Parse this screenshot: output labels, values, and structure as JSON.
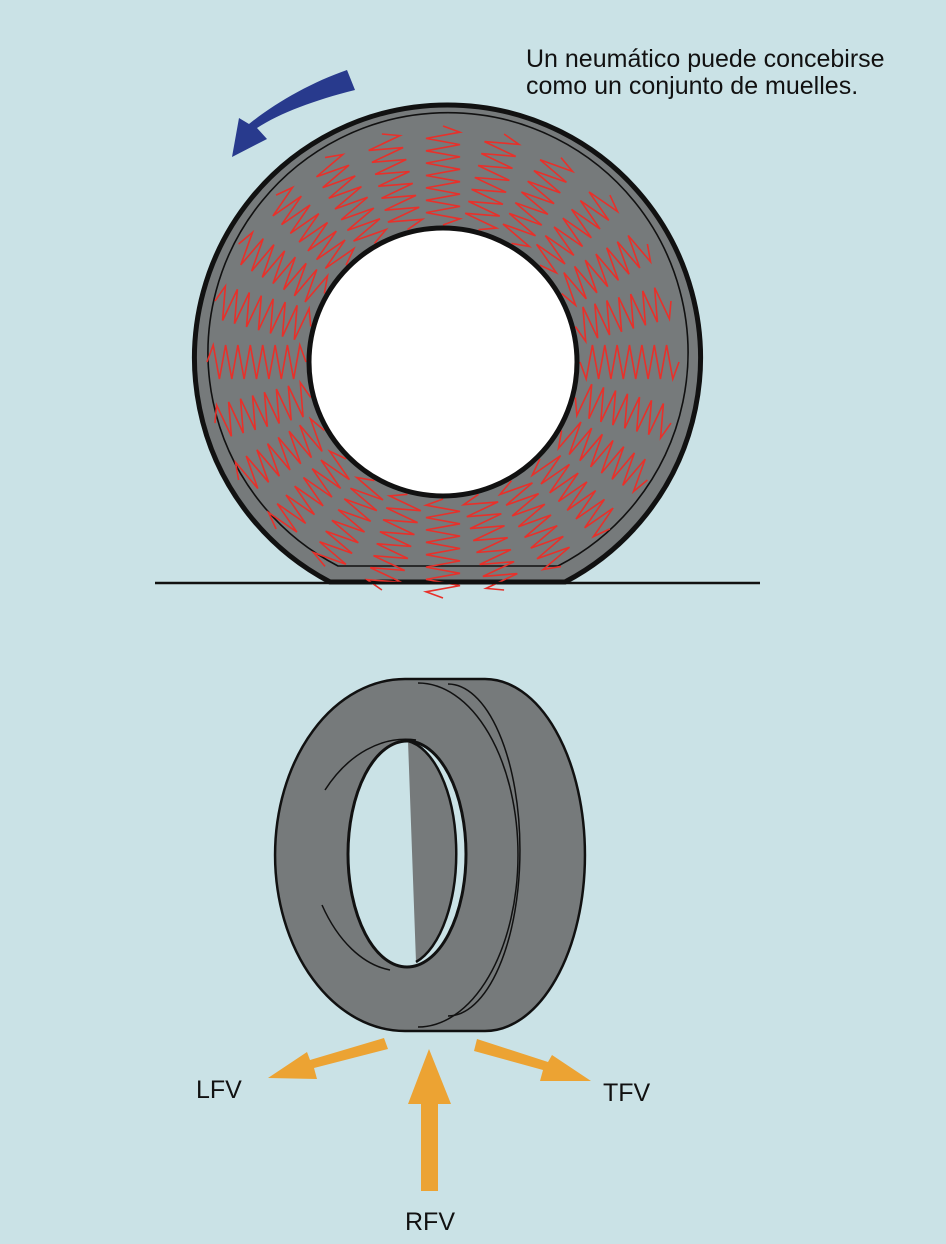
{
  "caption": {
    "line1": "Un neumático puede concebirse",
    "line2": "como un conjunto de muelles."
  },
  "forces": {
    "lfv": "LFV",
    "tfv": "TFV",
    "rfv": "RFV"
  },
  "colors": {
    "background": "#cae2e6",
    "tire": "#767a7b",
    "spring": "#e8302a",
    "rotation_arrow": "#283a8d",
    "force_arrow": "#eca333",
    "rim": "#ffffff"
  },
  "icons": {
    "rotation": "curved-arrow-counterclockwise",
    "forces": "arrow"
  },
  "spring_count": 24
}
